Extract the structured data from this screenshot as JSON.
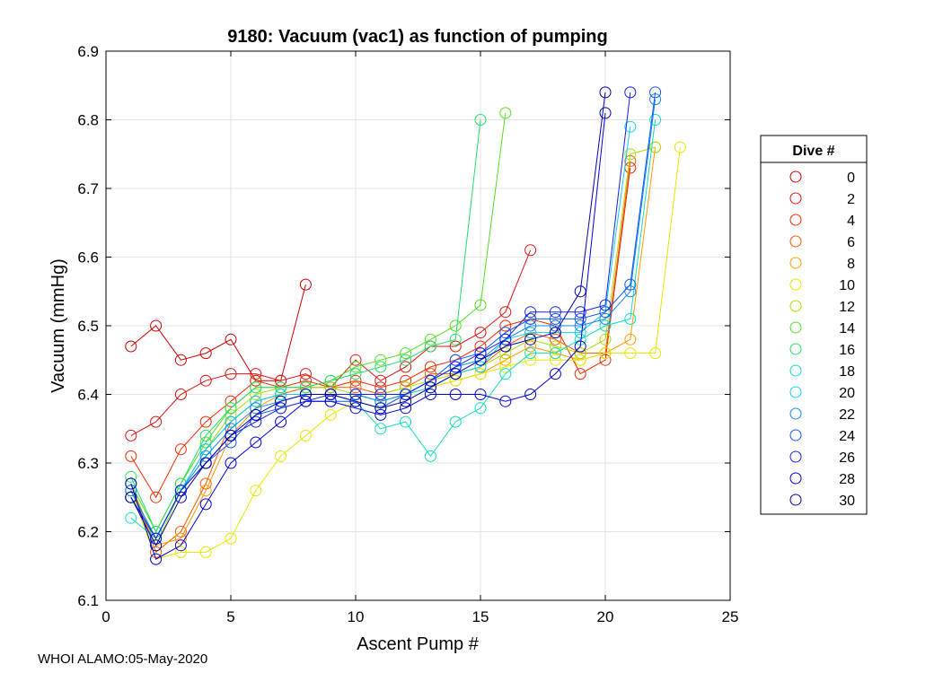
{
  "chart_data": {
    "type": "line",
    "title": "9180: Vacuum (vac1) as function of pumping",
    "xlabel": "Ascent Pump #",
    "ylabel": "Vacuum (mmHg)",
    "xlim": [
      0,
      25
    ],
    "ylim": [
      6.1,
      6.9
    ],
    "xticks": [
      0,
      5,
      10,
      15,
      20,
      25
    ],
    "yticks": [
      6.1,
      6.2,
      6.3,
      6.4,
      6.5,
      6.6,
      6.7,
      6.8,
      6.9
    ],
    "grid": true,
    "legend_title": "Dive #",
    "legend_position": "right",
    "series": [
      {
        "name": "0",
        "color": "#cc0000",
        "x": [
          1,
          2,
          3,
          4,
          5,
          6,
          7,
          8
        ],
        "y": [
          6.47,
          6.5,
          6.45,
          6.46,
          6.48,
          6.42,
          6.42,
          6.56
        ]
      },
      {
        "name": "2",
        "color": "#dd1111",
        "x": [
          1,
          2,
          3,
          4,
          5,
          6,
          7,
          8,
          9,
          10,
          11,
          12,
          13,
          14,
          15,
          16,
          17
        ],
        "y": [
          6.34,
          6.36,
          6.4,
          6.42,
          6.43,
          6.43,
          6.42,
          6.43,
          6.41,
          6.45,
          6.42,
          6.44,
          6.47,
          6.47,
          6.49,
          6.52,
          6.61
        ]
      },
      {
        "name": "4",
        "color": "#ee2a00",
        "x": [
          1,
          2,
          3,
          4,
          5,
          6,
          7,
          8,
          9,
          10,
          11,
          12,
          13,
          14,
          15,
          16,
          17,
          18,
          19,
          20,
          21
        ],
        "y": [
          6.31,
          6.25,
          6.32,
          6.36,
          6.39,
          6.42,
          6.41,
          6.42,
          6.41,
          6.42,
          6.41,
          6.42,
          6.44,
          6.45,
          6.47,
          6.5,
          6.51,
          6.5,
          6.43,
          6.45,
          6.73
        ]
      },
      {
        "name": "6",
        "color": "#ff5500",
        "x": [
          1,
          2,
          3,
          4,
          5,
          6,
          7,
          8,
          9,
          10,
          11,
          12,
          13,
          14,
          15,
          16,
          17,
          18,
          19,
          20,
          21
        ],
        "y": [
          6.27,
          6.17,
          6.2,
          6.27,
          6.36,
          6.39,
          6.4,
          6.41,
          6.41,
          6.41,
          6.4,
          6.41,
          6.43,
          6.43,
          6.44,
          6.47,
          6.49,
          6.48,
          6.46,
          6.46,
          6.74
        ]
      },
      {
        "name": "8",
        "color": "#ff9900",
        "x": [
          1,
          2,
          3,
          4,
          5,
          6,
          7,
          8,
          9,
          10,
          11,
          12,
          13,
          14,
          15,
          16,
          17,
          18,
          19,
          20,
          21,
          22
        ],
        "y": [
          6.26,
          6.18,
          6.19,
          6.26,
          6.34,
          6.38,
          6.4,
          6.4,
          6.4,
          6.4,
          6.39,
          6.4,
          6.41,
          6.42,
          6.43,
          6.45,
          6.47,
          6.46,
          6.45,
          6.46,
          6.48,
          6.76
        ]
      },
      {
        "name": "10",
        "color": "#e6e600",
        "x": [
          1,
          2,
          3,
          4,
          5,
          6,
          7,
          8,
          9,
          10,
          11,
          12,
          13,
          14,
          15,
          16,
          17,
          18,
          19,
          20,
          21,
          22,
          23
        ],
        "y": [
          6.26,
          6.16,
          6.17,
          6.17,
          6.19,
          6.26,
          6.31,
          6.34,
          6.37,
          6.39,
          6.38,
          6.39,
          6.41,
          6.42,
          6.43,
          6.44,
          6.45,
          6.45,
          6.45,
          6.46,
          6.46,
          6.46,
          6.76
        ]
      },
      {
        "name": "12",
        "color": "#aadd00",
        "x": [
          1,
          2,
          3,
          4,
          5,
          6,
          7,
          8,
          9,
          10,
          11,
          12,
          13,
          14,
          15,
          16,
          17,
          18,
          19,
          20,
          21,
          22
        ],
        "y": [
          6.27,
          6.18,
          6.26,
          6.32,
          6.37,
          6.4,
          6.41,
          6.41,
          6.41,
          6.4,
          6.4,
          6.41,
          6.42,
          6.43,
          6.44,
          6.46,
          6.48,
          6.47,
          6.46,
          6.48,
          6.75,
          6.76
        ]
      },
      {
        "name": "14",
        "color": "#55dd22",
        "x": [
          1,
          2,
          3,
          4,
          5,
          6,
          7,
          8,
          9,
          10,
          11,
          12,
          13,
          14,
          15,
          16
        ],
        "y": [
          6.27,
          6.2,
          6.27,
          6.33,
          6.38,
          6.41,
          6.41,
          6.41,
          6.42,
          6.44,
          6.45,
          6.46,
          6.48,
          6.5,
          6.53,
          6.81
        ]
      },
      {
        "name": "16",
        "color": "#22dd66",
        "x": [
          1,
          2,
          3,
          4,
          5,
          6,
          7,
          8,
          9,
          10,
          11,
          12,
          13,
          14,
          15
        ],
        "y": [
          6.28,
          6.2,
          6.27,
          6.34,
          6.38,
          6.41,
          6.41,
          6.41,
          6.42,
          6.43,
          6.44,
          6.45,
          6.47,
          6.48,
          6.8
        ]
      },
      {
        "name": "18",
        "color": "#11ddbb",
        "x": [
          1,
          2,
          3,
          4,
          5,
          6,
          7,
          8,
          9,
          10,
          11,
          12,
          13,
          14,
          15,
          16,
          17,
          18,
          19,
          20,
          21,
          22
        ],
        "y": [
          6.22,
          6.19,
          6.26,
          6.32,
          6.36,
          6.39,
          6.4,
          6.4,
          6.4,
          6.39,
          6.35,
          6.36,
          6.31,
          6.36,
          6.38,
          6.43,
          6.46,
          6.46,
          6.48,
          6.5,
          6.51,
          6.8
        ]
      },
      {
        "name": "20",
        "color": "#11ccee",
        "x": [
          1,
          2,
          3,
          4,
          5,
          6,
          7,
          8,
          9,
          10,
          11,
          12,
          13,
          14,
          15,
          16,
          17,
          18,
          19,
          20,
          21
        ],
        "y": [
          6.26,
          6.19,
          6.26,
          6.32,
          6.36,
          6.39,
          6.4,
          6.4,
          6.4,
          6.4,
          6.39,
          6.4,
          6.41,
          6.43,
          6.44,
          6.48,
          6.49,
          6.49,
          6.49,
          6.52,
          6.79
        ]
      },
      {
        "name": "22",
        "color": "#1188ee",
        "x": [
          1,
          2,
          3,
          4,
          5,
          6,
          7,
          8,
          9,
          10,
          11,
          12,
          13,
          14,
          15,
          16,
          17,
          18,
          19,
          20,
          21,
          22
        ],
        "y": [
          6.26,
          6.19,
          6.26,
          6.31,
          6.35,
          6.38,
          6.39,
          6.4,
          6.4,
          6.4,
          6.39,
          6.4,
          6.42,
          6.44,
          6.45,
          6.48,
          6.5,
          6.5,
          6.5,
          6.51,
          6.55,
          6.83
        ]
      },
      {
        "name": "24",
        "color": "#1155ff",
        "x": [
          1,
          2,
          3,
          4,
          5,
          6,
          7,
          8,
          9,
          10,
          11,
          12,
          13,
          14,
          15,
          16,
          17,
          18,
          19,
          20,
          21,
          22
        ],
        "y": [
          6.25,
          6.19,
          6.26,
          6.3,
          6.33,
          6.37,
          6.38,
          6.39,
          6.39,
          6.39,
          6.38,
          6.4,
          6.42,
          6.45,
          6.46,
          6.49,
          6.51,
          6.51,
          6.51,
          6.52,
          6.56,
          6.84
        ]
      },
      {
        "name": "26",
        "color": "#1122ee",
        "x": [
          1,
          2,
          3,
          4,
          5,
          6,
          7,
          8,
          9,
          10,
          11,
          12,
          13,
          14,
          15,
          16,
          17,
          18,
          19,
          20,
          21
        ],
        "y": [
          6.25,
          6.19,
          6.26,
          6.3,
          6.34,
          6.36,
          6.38,
          6.39,
          6.4,
          6.4,
          6.4,
          6.4,
          6.42,
          6.44,
          6.46,
          6.48,
          6.52,
          6.52,
          6.52,
          6.53,
          6.84
        ]
      },
      {
        "name": "28",
        "color": "#0000dd",
        "x": [
          1,
          2,
          3,
          4,
          5,
          6,
          7,
          8,
          9,
          10,
          11,
          12,
          13,
          14,
          15,
          16,
          17,
          18,
          19,
          20
        ],
        "y": [
          6.27,
          6.16,
          6.18,
          6.24,
          6.3,
          6.33,
          6.36,
          6.39,
          6.39,
          6.38,
          6.37,
          6.38,
          6.4,
          6.4,
          6.4,
          6.39,
          6.4,
          6.43,
          6.47,
          6.81
        ]
      },
      {
        "name": "30",
        "color": "#0000aa",
        "x": [
          1,
          2,
          3,
          4,
          5,
          6,
          7,
          8,
          9,
          10,
          11,
          12,
          13,
          14,
          15,
          16,
          17,
          18,
          19,
          20
        ],
        "y": [
          6.25,
          6.18,
          6.25,
          6.3,
          6.34,
          6.37,
          6.39,
          6.4,
          6.4,
          6.39,
          6.38,
          6.39,
          6.41,
          6.43,
          6.45,
          6.47,
          6.48,
          6.49,
          6.55,
          6.84
        ]
      }
    ]
  },
  "footer": "WHOI ALAMO:05-May-2020"
}
